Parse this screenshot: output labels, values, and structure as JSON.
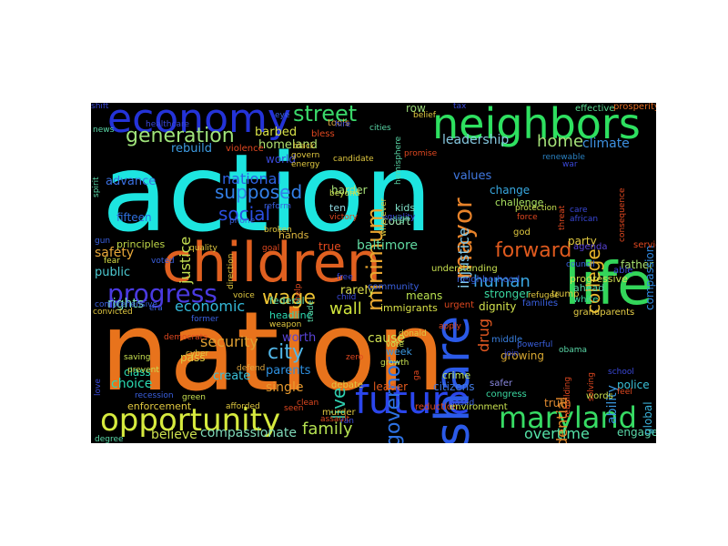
{
  "words": [
    {
      "text": "action",
      "color": "#1de5e0"
    },
    {
      "text": "nation",
      "color": "#e8731c"
    },
    {
      "text": "children",
      "color": "#e06020"
    },
    {
      "text": "neighbors",
      "color": "#2ee060"
    },
    {
      "text": "economy",
      "color": "#2433d8"
    },
    {
      "text": "life",
      "color": "#33d65a"
    },
    {
      "text": "future",
      "color": "#2b46ec"
    },
    {
      "text": "share",
      "color": "#2b5ae8"
    },
    {
      "text": "opportunity",
      "color": "#d6ea3e"
    },
    {
      "text": "maryland",
      "color": "#37db64"
    },
    {
      "text": "street",
      "color": "#3ad86a"
    },
    {
      "text": "progress",
      "color": "#4a3ae0"
    },
    {
      "text": "generation",
      "color": "#9fe37a"
    },
    {
      "text": "mayor",
      "color": "#e8832a"
    },
    {
      "text": "minimum",
      "color": "#e8a530"
    },
    {
      "text": "college",
      "color": "#e8b52c"
    },
    {
      "text": "forward",
      "color": "#e05a1e"
    },
    {
      "text": "wage",
      "color": "#ecc233"
    },
    {
      "text": "supposed",
      "color": "#3380e8"
    },
    {
      "text": "social",
      "color": "#2a4ee0"
    },
    {
      "text": "national",
      "color": "#2e62e2"
    },
    {
      "text": "city",
      "color": "#52b7e8"
    },
    {
      "text": "family",
      "color": "#b4e050"
    },
    {
      "text": "home",
      "color": "#a3e078"
    },
    {
      "text": "human",
      "color": "#3aa6e2"
    },
    {
      "text": "economic",
      "color": "#33b8d8"
    },
    {
      "text": "security",
      "color": "#e0a032"
    },
    {
      "text": "governor",
      "color": "#2d72e4"
    },
    {
      "text": "live",
      "color": "#2fd0b0"
    },
    {
      "text": "wall",
      "color": "#cfe43c"
    },
    {
      "text": "justice",
      "color": "#c4e052"
    },
    {
      "text": "injustice",
      "color": "#7fc8e8"
    },
    {
      "text": "drug",
      "color": "#e85a22"
    },
    {
      "text": "baltimore",
      "color": "#60d8a0"
    },
    {
      "text": "overtime",
      "color": "#54e3a8"
    },
    {
      "text": "climate",
      "color": "#3d90e0"
    },
    {
      "text": "leadership",
      "color": "#86c8e0"
    },
    {
      "text": "compassionate",
      "color": "#7ed8b8"
    },
    {
      "text": "believe",
      "color": "#cde04e"
    },
    {
      "text": "engagement",
      "color": "#5ad8a8"
    },
    {
      "text": "safety",
      "color": "#e8a83a"
    },
    {
      "text": "rights",
      "color": "#7ce0c0"
    },
    {
      "text": "public",
      "color": "#4cc8d0"
    },
    {
      "text": "advance",
      "color": "#3a70e0"
    },
    {
      "text": "rebuild",
      "color": "#3d9ae0"
    },
    {
      "text": "presidential",
      "color": "#e88a2a"
    },
    {
      "text": "single",
      "color": "#e89a2e"
    },
    {
      "text": "cause",
      "color": "#cfe050"
    },
    {
      "text": "father",
      "color": "#a8e070"
    },
    {
      "text": "dignity",
      "color": "#d0e04c"
    },
    {
      "text": "growing",
      "color": "#d8a832"
    },
    {
      "text": "choice",
      "color": "#2ad8b0"
    },
    {
      "text": "create",
      "color": "#3ac0d8"
    },
    {
      "text": "parents",
      "color": "#2e90e0"
    },
    {
      "text": "worth",
      "color": "#5a44d8"
    },
    {
      "text": "rarely",
      "color": "#dce04a"
    },
    {
      "text": "change",
      "color": "#38a8e0"
    },
    {
      "text": "stronger",
      "color": "#3ad8a0"
    },
    {
      "text": "means",
      "color": "#b8e050"
    },
    {
      "text": "immigrants",
      "color": "#d8e048"
    },
    {
      "text": "true",
      "color": "#e84a1e"
    },
    {
      "text": "values",
      "color": "#4078e0"
    },
    {
      "text": "ability",
      "color": "#3a98e0"
    },
    {
      "text": "global",
      "color": "#3ab0d8"
    },
    {
      "text": "progressive",
      "color": "#cfe050"
    },
    {
      "text": "party",
      "color": "#e0c840"
    },
    {
      "text": "compassion",
      "color": "#3088e0"
    },
    {
      "text": "court",
      "color": "#a0e0b0"
    },
    {
      "text": "kids",
      "color": "#80e0c8"
    },
    {
      "text": "harder",
      "color": "#a8e078"
    },
    {
      "text": "ten",
      "color": "#90d8e0"
    },
    {
      "text": "challenge",
      "color": "#a8e060"
    },
    {
      "text": "crime",
      "color": "#b8e060"
    },
    {
      "text": "citizens",
      "color": "#4078e0"
    },
    {
      "text": "truth",
      "color": "#e08a30"
    },
    {
      "text": "police",
      "color": "#3ac0d8"
    },
    {
      "text": "leader",
      "color": "#e05a1e"
    },
    {
      "text": "week",
      "color": "#3a98e0"
    },
    {
      "text": "pass",
      "color": "#e0c840"
    },
    {
      "text": "class",
      "color": "#2ad8b0"
    },
    {
      "text": "headline",
      "color": "#2ad8b0"
    },
    {
      "text": "federal",
      "color": "#5ad8a8"
    },
    {
      "text": "hands",
      "color": "#e0b840"
    },
    {
      "text": "fifteen",
      "color": "#2e70e0"
    },
    {
      "text": "principles",
      "color": "#c0d848"
    },
    {
      "text": "homeland",
      "color": "#b0e070"
    },
    {
      "text": "barbed",
      "color": "#d8e048"
    },
    {
      "text": "world",
      "color": "#3a48d8"
    },
    {
      "text": "community",
      "color": "#3a60e0"
    },
    {
      "text": "row",
      "color": "#9ad878"
    },
    {
      "text": "understanding",
      "color": "#c8e050"
    },
    {
      "text": "neighborhood",
      "color": "#3a60e0"
    },
    {
      "text": "urgent",
      "color": "#e04820"
    },
    {
      "text": "middle",
      "color": "#3a80e0"
    },
    {
      "text": "service",
      "color": "#e04820"
    },
    {
      "text": "ahead",
      "color": "#5ad8a8"
    },
    {
      "text": "families",
      "color": "#3a60e0"
    },
    {
      "text": "grandparents",
      "color": "#e8d048"
    },
    {
      "text": "enforcement",
      "color": "#e0c840"
    },
    {
      "text": "words",
      "color": "#c8e050"
    },
    {
      "text": "reduction",
      "color": "#e04820"
    },
    {
      "text": "environment",
      "color": "#c8e050"
    },
    {
      "text": "murder",
      "color": "#e0c840"
    },
    {
      "text": "debate",
      "color": "#e0c840"
    },
    {
      "text": "congress",
      "color": "#3ad8a0"
    },
    {
      "text": "safer",
      "color": "#8a88e0"
    },
    {
      "text": "agenda",
      "color": "#5a44d8"
    },
    {
      "text": "trump",
      "color": "#e0c840"
    },
    {
      "text": "white",
      "color": "#3ad8a0"
    },
    {
      "text": "able",
      "color": "#3a48d8"
    },
    {
      "text": "effective",
      "color": "#5ad890"
    },
    {
      "text": "prosperity",
      "color": "#e06a22"
    },
    {
      "text": "god",
      "color": "#e0c840"
    },
    {
      "text": "renewable",
      "color": "#2a80c0"
    },
    {
      "text": "protection",
      "color": "#c8e050"
    },
    {
      "text": "force",
      "color": "#e04820"
    },
    {
      "text": "equality",
      "color": "#3a48d8"
    },
    {
      "text": "victory",
      "color": "#e04820"
    },
    {
      "text": "reform",
      "color": "#3a60e0"
    },
    {
      "text": "phone",
      "color": "#3a60e0"
    },
    {
      "text": "violence",
      "color": "#e04820"
    },
    {
      "text": "tools",
      "color": "#e0a840"
    },
    {
      "text": "bless",
      "color": "#e04820"
    },
    {
      "text": "cities",
      "color": "#5ad8a8"
    },
    {
      "text": "candidate",
      "color": "#e0c840"
    },
    {
      "text": "news",
      "color": "#5ad8a8"
    },
    {
      "text": "eye",
      "color": "#3a60e0"
    },
    {
      "text": "gun",
      "color": "#3a60e0"
    },
    {
      "text": "fear",
      "color": "#d8e048"
    },
    {
      "text": "quality",
      "color": "#e0c840"
    },
    {
      "text": "broken",
      "color": "#e0c840"
    },
    {
      "text": "goal",
      "color": "#e04820"
    },
    {
      "text": "voted",
      "color": "#3a60e0"
    },
    {
      "text": "free",
      "color": "#3a48d8"
    },
    {
      "text": "child",
      "color": "#3a48d8"
    },
    {
      "text": "voice",
      "color": "#e0c840"
    },
    {
      "text": "former",
      "color": "#3a60e0"
    },
    {
      "text": "weapon",
      "color": "#e0c840"
    },
    {
      "text": "convicted",
      "color": "#e0c840"
    },
    {
      "text": "era",
      "color": "#3a60e0"
    },
    {
      "text": "democrats",
      "color": "#e04820"
    },
    {
      "text": "cyber",
      "color": "#e0c840"
    },
    {
      "text": "saving",
      "color": "#c8e050"
    },
    {
      "text": "prevent",
      "color": "#c8e050"
    },
    {
      "text": "defend",
      "color": "#e0a840"
    },
    {
      "text": "recession",
      "color": "#3a60e0"
    },
    {
      "text": "green",
      "color": "#c8e050"
    },
    {
      "text": "afforded",
      "color": "#e0c840"
    },
    {
      "text": "clean",
      "color": "#e04820"
    },
    {
      "text": "assault",
      "color": "#e04820"
    },
    {
      "text": "degree",
      "color": "#5ad8a8"
    },
    {
      "text": "growth",
      "color": "#c8e050"
    },
    {
      "text": "vote",
      "color": "#c8e050"
    },
    {
      "text": "donald",
      "color": "#e0c840"
    },
    {
      "text": "apply",
      "color": "#e04820"
    },
    {
      "text": "based",
      "color": "#3a60e0"
    },
    {
      "text": "feel",
      "color": "#e04820"
    },
    {
      "text": "school",
      "color": "#3a48d8"
    },
    {
      "text": "join",
      "color": "#3a48d8"
    },
    {
      "text": "obama",
      "color": "#5ad8a8"
    },
    {
      "text": "council",
      "color": "#3a60e0"
    },
    {
      "text": "refugee",
      "color": "#e0c840"
    },
    {
      "text": "rebuilding",
      "color": "#e04820"
    },
    {
      "text": "solving",
      "color": "#e04820"
    },
    {
      "text": "powerful",
      "color": "#3a60e0"
    },
    {
      "text": "love",
      "color": "#3a48d8"
    },
    {
      "text": "comprehensive",
      "color": "#3a60e0"
    },
    {
      "text": "spirit",
      "color": "#5ad8a8"
    },
    {
      "text": "govern",
      "color": "#e0c840"
    },
    {
      "text": "energy",
      "color": "#e0c840"
    },
    {
      "text": "black",
      "color": "#e0c840"
    },
    {
      "text": "beyond",
      "color": "#c8e050"
    },
    {
      "text": "wherever",
      "color": "#e0c840"
    },
    {
      "text": "promise",
      "color": "#e04820"
    },
    {
      "text": "hemisphere",
      "color": "#5ad8a8"
    },
    {
      "text": "belief",
      "color": "#e0c840"
    },
    {
      "text": "threat",
      "color": "#e04820"
    },
    {
      "text": "consequence",
      "color": "#e04820"
    },
    {
      "text": "african",
      "color": "#3a48d8"
    },
    {
      "text": "war",
      "color": "#3a48d8"
    },
    {
      "text": "sign",
      "color": "#5ad8a8"
    },
    {
      "text": "care",
      "color": "#3a48d8"
    },
    {
      "text": "ga",
      "color": "#e04820"
    },
    {
      "text": "zero",
      "color": "#e04820"
    },
    {
      "text": "trade",
      "color": "#5ad8a8"
    },
    {
      "text": "help",
      "color": "#e04820"
    },
    {
      "text": "direction",
      "color": "#e0c840"
    },
    {
      "text": "hire",
      "color": "#3a48d8"
    },
    {
      "text": "healthcare",
      "color": "#3a48d8"
    },
    {
      "text": "ran",
      "color": "#3a48d8"
    },
    {
      "text": "seen",
      "color": "#e04820"
    },
    {
      "text": "tax",
      "color": "#3a48d8"
    },
    {
      "text": "shift",
      "color": "#3a48d8"
    }
  ]
}
